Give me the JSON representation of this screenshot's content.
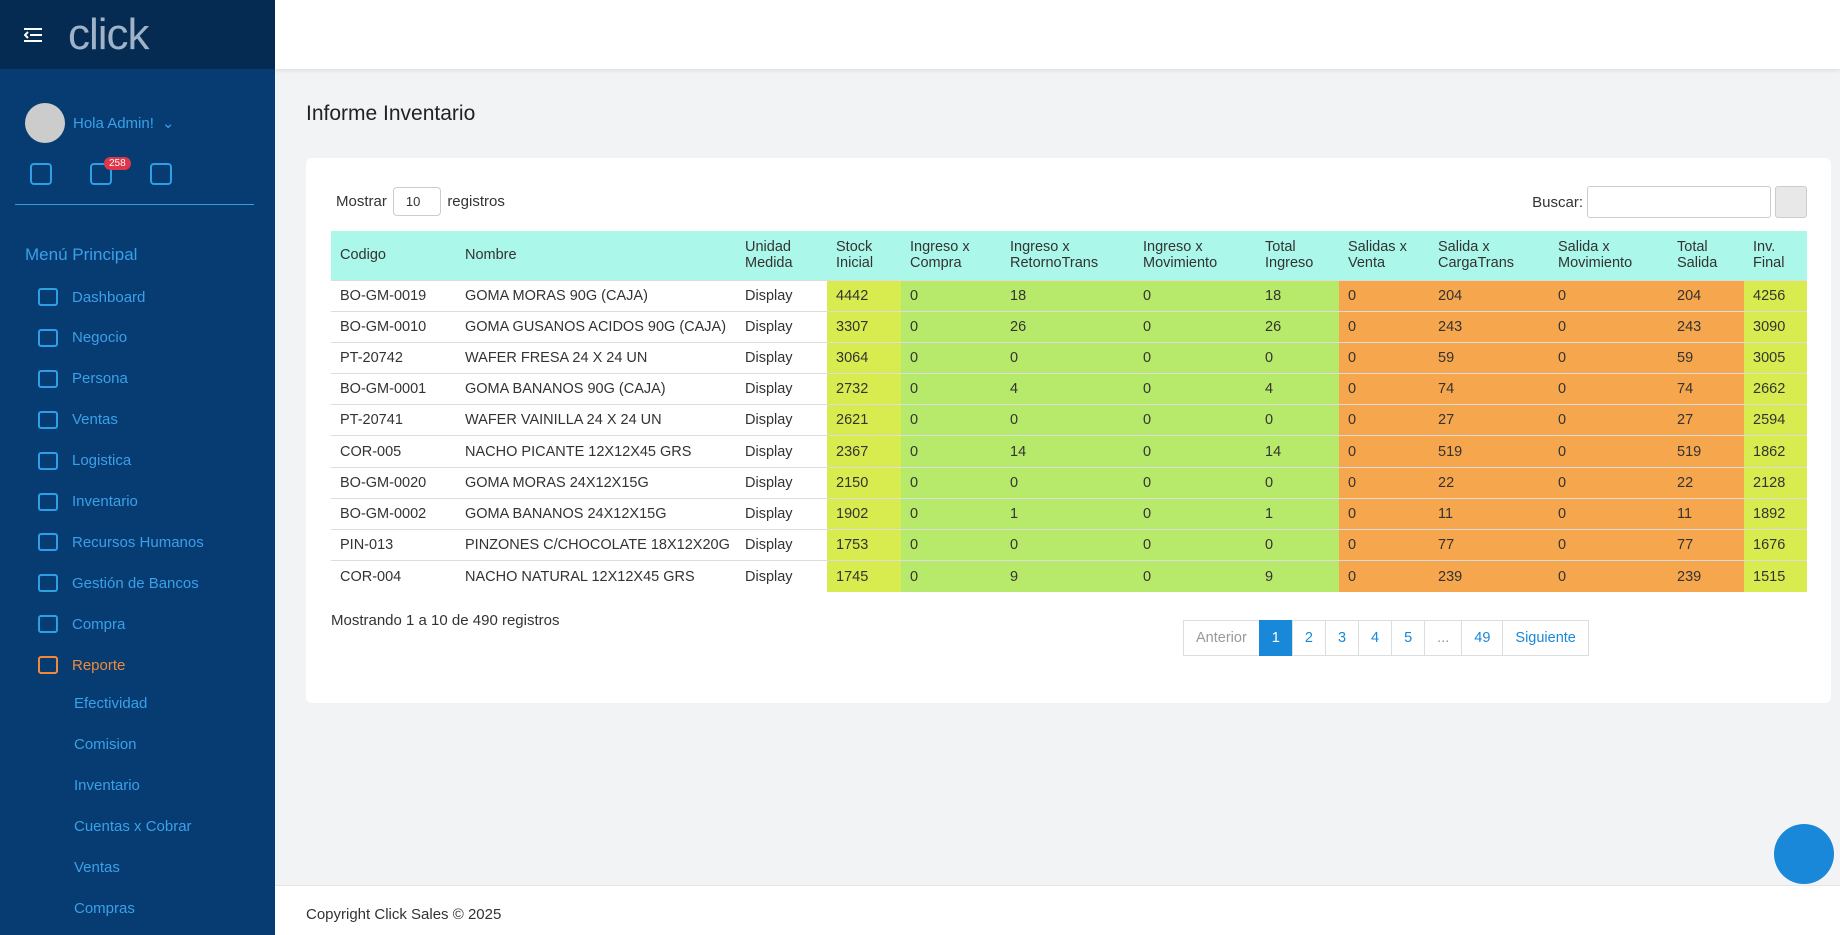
{
  "sidebar": {
    "logo": "click",
    "greeting": "Hola Admin!",
    "badge": "258",
    "menu_title": "Menú Principal",
    "menu": [
      "Dashboard",
      "Negocio",
      "Persona",
      "Ventas",
      "Logistica",
      "Inventario",
      "Recursos Humanos",
      "Gestión de Bancos",
      "Compra",
      "Reporte"
    ],
    "submenu": [
      "Efectividad",
      "Comision",
      "Inventario",
      "Cuentas x Cobrar",
      "Ventas",
      "Compras"
    ]
  },
  "page": {
    "title": "Informe Inventario"
  },
  "controls": {
    "show_label": "Mostrar",
    "page_size": "10",
    "records_label": "registros",
    "search_label": "Buscar:"
  },
  "table": {
    "columns": [
      "Codigo",
      "Nombre",
      "Unidad Medida",
      "Stock Inicial",
      "Ingreso x Compra",
      "Ingreso x RetornoTrans",
      "Ingreso x Movimiento",
      "Total Ingreso",
      "Salidas x Venta",
      "Salida x CargaTrans",
      "Salida x Movimiento",
      "Total Salida",
      "Inv. Final"
    ],
    "rows": [
      [
        "BO-GM-0019",
        "GOMA MORAS 90G (CAJA)",
        "Display",
        4442,
        0,
        18,
        0,
        18,
        0,
        204,
        0,
        204,
        4256
      ],
      [
        "BO-GM-0010",
        "GOMA GUSANOS ACIDOS 90G (CAJA)",
        "Display",
        3307,
        0,
        26,
        0,
        26,
        0,
        243,
        0,
        243,
        3090
      ],
      [
        "PT-20742",
        "WAFER FRESA 24 X 24 UN",
        "Display",
        3064,
        0,
        0,
        0,
        0,
        0,
        59,
        0,
        59,
        3005
      ],
      [
        "BO-GM-0001",
        "GOMA BANANOS 90G (CAJA)",
        "Display",
        2732,
        0,
        4,
        0,
        4,
        0,
        74,
        0,
        74,
        2662
      ],
      [
        "PT-20741",
        "WAFER VAINILLA 24 X 24 UN",
        "Display",
        2621,
        0,
        0,
        0,
        0,
        0,
        27,
        0,
        27,
        2594
      ],
      [
        "COR-005",
        "NACHO PICANTE 12X12X45 GRS",
        "Display",
        2367,
        0,
        14,
        0,
        14,
        0,
        519,
        0,
        519,
        1862
      ],
      [
        "BO-GM-0020",
        "GOMA MORAS 24X12X15G",
        "Display",
        2150,
        0,
        0,
        0,
        0,
        0,
        22,
        0,
        22,
        2128
      ],
      [
        "BO-GM-0002",
        "GOMA BANANOS 24X12X15G",
        "Display",
        1902,
        0,
        1,
        0,
        1,
        0,
        11,
        0,
        11,
        1892
      ],
      [
        "PIN-013",
        "PINZONES C/CHOCOLATE 18X12X20G",
        "Display",
        1753,
        0,
        0,
        0,
        0,
        0,
        77,
        0,
        77,
        1676
      ],
      [
        "COR-004",
        "NACHO NATURAL 12X12X45 GRS",
        "Display",
        1745,
        0,
        9,
        0,
        9,
        0,
        239,
        0,
        239,
        1515
      ]
    ]
  },
  "info": "Mostrando 1 a 10 de 490 registros",
  "pagination": [
    "Anterior",
    "1",
    "2",
    "3",
    "4",
    "5",
    "...",
    "49",
    "Siguiente"
  ],
  "footer": "Copyright Click Sales © 2025"
}
